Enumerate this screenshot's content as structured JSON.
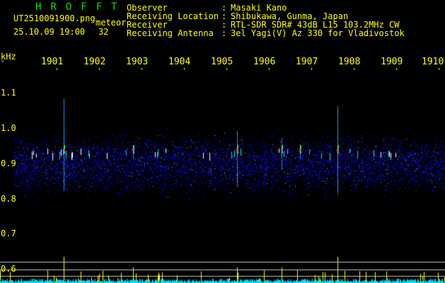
{
  "header": {
    "app_title": "HROFFT",
    "filename": "UT2510091900.png",
    "mode": "meteor",
    "datetime": "25.10.09 19:00",
    "count": "32"
  },
  "info": [
    {
      "label": "Observer",
      "value": "Masaki Kano"
    },
    {
      "label": "Receiving Location",
      "value": "Shibukawa, Gunma, Japan"
    },
    {
      "label": "Receiver",
      "value": "RTL-SDR SDR# 43dB L15 103.2MHz CW"
    },
    {
      "label": "Receiving Antenna",
      "value": "3el Yagi(V) Az 330 for Vladivostok"
    }
  ],
  "axis": {
    "y_unit": "kHz",
    "y_labels": [
      "1.1",
      "1.0",
      "0.9",
      "0.8",
      "0.7",
      "0.6"
    ],
    "time_labels": [
      "1901",
      "1902",
      "1903",
      "1904",
      "1905",
      "1906",
      "1907",
      "1908",
      "1909",
      "1910"
    ]
  },
  "colors": {
    "text": "#ffff00",
    "title": "#00e000",
    "background": "#000000",
    "noise": "#0000c0",
    "baseline": "#00e0ff"
  }
}
